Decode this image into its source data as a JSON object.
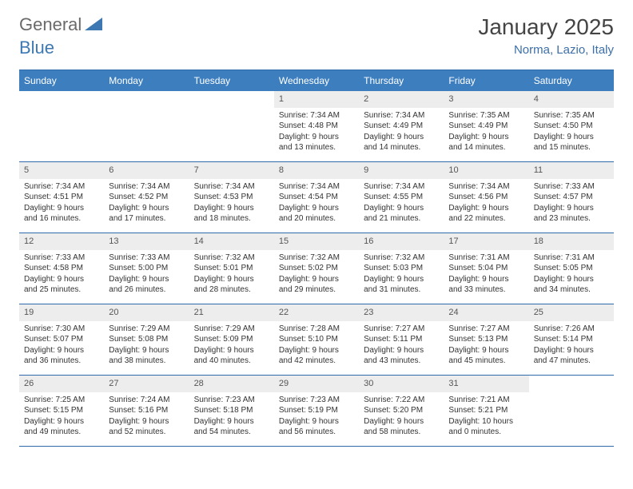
{
  "logo": {
    "text_general": "General",
    "text_blue": "Blue"
  },
  "header": {
    "month_title": "January 2025",
    "location": "Norma, Lazio, Italy"
  },
  "colors": {
    "header_bg": "#3d7ebf",
    "header_text": "#ffffff",
    "border": "#2f6aaa",
    "daynum_bg": "#ededed",
    "body_text": "#333333",
    "location_text": "#3c6fa8",
    "logo_gray": "#6a6a6a",
    "logo_blue": "#3d78b3"
  },
  "weekdays": [
    "Sunday",
    "Monday",
    "Tuesday",
    "Wednesday",
    "Thursday",
    "Friday",
    "Saturday"
  ],
  "weeks": [
    [
      {
        "n": "",
        "sr": "",
        "ss": "",
        "dl": "",
        "empty": true
      },
      {
        "n": "",
        "sr": "",
        "ss": "",
        "dl": "",
        "empty": true
      },
      {
        "n": "",
        "sr": "",
        "ss": "",
        "dl": "",
        "empty": true
      },
      {
        "n": "1",
        "sr": "Sunrise: 7:34 AM",
        "ss": "Sunset: 4:48 PM",
        "dl": "Daylight: 9 hours and 13 minutes."
      },
      {
        "n": "2",
        "sr": "Sunrise: 7:34 AM",
        "ss": "Sunset: 4:49 PM",
        "dl": "Daylight: 9 hours and 14 minutes."
      },
      {
        "n": "3",
        "sr": "Sunrise: 7:35 AM",
        "ss": "Sunset: 4:49 PM",
        "dl": "Daylight: 9 hours and 14 minutes."
      },
      {
        "n": "4",
        "sr": "Sunrise: 7:35 AM",
        "ss": "Sunset: 4:50 PM",
        "dl": "Daylight: 9 hours and 15 minutes."
      }
    ],
    [
      {
        "n": "5",
        "sr": "Sunrise: 7:34 AM",
        "ss": "Sunset: 4:51 PM",
        "dl": "Daylight: 9 hours and 16 minutes."
      },
      {
        "n": "6",
        "sr": "Sunrise: 7:34 AM",
        "ss": "Sunset: 4:52 PM",
        "dl": "Daylight: 9 hours and 17 minutes."
      },
      {
        "n": "7",
        "sr": "Sunrise: 7:34 AM",
        "ss": "Sunset: 4:53 PM",
        "dl": "Daylight: 9 hours and 18 minutes."
      },
      {
        "n": "8",
        "sr": "Sunrise: 7:34 AM",
        "ss": "Sunset: 4:54 PM",
        "dl": "Daylight: 9 hours and 20 minutes."
      },
      {
        "n": "9",
        "sr": "Sunrise: 7:34 AM",
        "ss": "Sunset: 4:55 PM",
        "dl": "Daylight: 9 hours and 21 minutes."
      },
      {
        "n": "10",
        "sr": "Sunrise: 7:34 AM",
        "ss": "Sunset: 4:56 PM",
        "dl": "Daylight: 9 hours and 22 minutes."
      },
      {
        "n": "11",
        "sr": "Sunrise: 7:33 AM",
        "ss": "Sunset: 4:57 PM",
        "dl": "Daylight: 9 hours and 23 minutes."
      }
    ],
    [
      {
        "n": "12",
        "sr": "Sunrise: 7:33 AM",
        "ss": "Sunset: 4:58 PM",
        "dl": "Daylight: 9 hours and 25 minutes."
      },
      {
        "n": "13",
        "sr": "Sunrise: 7:33 AM",
        "ss": "Sunset: 5:00 PM",
        "dl": "Daylight: 9 hours and 26 minutes."
      },
      {
        "n": "14",
        "sr": "Sunrise: 7:32 AM",
        "ss": "Sunset: 5:01 PM",
        "dl": "Daylight: 9 hours and 28 minutes."
      },
      {
        "n": "15",
        "sr": "Sunrise: 7:32 AM",
        "ss": "Sunset: 5:02 PM",
        "dl": "Daylight: 9 hours and 29 minutes."
      },
      {
        "n": "16",
        "sr": "Sunrise: 7:32 AM",
        "ss": "Sunset: 5:03 PM",
        "dl": "Daylight: 9 hours and 31 minutes."
      },
      {
        "n": "17",
        "sr": "Sunrise: 7:31 AM",
        "ss": "Sunset: 5:04 PM",
        "dl": "Daylight: 9 hours and 33 minutes."
      },
      {
        "n": "18",
        "sr": "Sunrise: 7:31 AM",
        "ss": "Sunset: 5:05 PM",
        "dl": "Daylight: 9 hours and 34 minutes."
      }
    ],
    [
      {
        "n": "19",
        "sr": "Sunrise: 7:30 AM",
        "ss": "Sunset: 5:07 PM",
        "dl": "Daylight: 9 hours and 36 minutes."
      },
      {
        "n": "20",
        "sr": "Sunrise: 7:29 AM",
        "ss": "Sunset: 5:08 PM",
        "dl": "Daylight: 9 hours and 38 minutes."
      },
      {
        "n": "21",
        "sr": "Sunrise: 7:29 AM",
        "ss": "Sunset: 5:09 PM",
        "dl": "Daylight: 9 hours and 40 minutes."
      },
      {
        "n": "22",
        "sr": "Sunrise: 7:28 AM",
        "ss": "Sunset: 5:10 PM",
        "dl": "Daylight: 9 hours and 42 minutes."
      },
      {
        "n": "23",
        "sr": "Sunrise: 7:27 AM",
        "ss": "Sunset: 5:11 PM",
        "dl": "Daylight: 9 hours and 43 minutes."
      },
      {
        "n": "24",
        "sr": "Sunrise: 7:27 AM",
        "ss": "Sunset: 5:13 PM",
        "dl": "Daylight: 9 hours and 45 minutes."
      },
      {
        "n": "25",
        "sr": "Sunrise: 7:26 AM",
        "ss": "Sunset: 5:14 PM",
        "dl": "Daylight: 9 hours and 47 minutes."
      }
    ],
    [
      {
        "n": "26",
        "sr": "Sunrise: 7:25 AM",
        "ss": "Sunset: 5:15 PM",
        "dl": "Daylight: 9 hours and 49 minutes."
      },
      {
        "n": "27",
        "sr": "Sunrise: 7:24 AM",
        "ss": "Sunset: 5:16 PM",
        "dl": "Daylight: 9 hours and 52 minutes."
      },
      {
        "n": "28",
        "sr": "Sunrise: 7:23 AM",
        "ss": "Sunset: 5:18 PM",
        "dl": "Daylight: 9 hours and 54 minutes."
      },
      {
        "n": "29",
        "sr": "Sunrise: 7:23 AM",
        "ss": "Sunset: 5:19 PM",
        "dl": "Daylight: 9 hours and 56 minutes."
      },
      {
        "n": "30",
        "sr": "Sunrise: 7:22 AM",
        "ss": "Sunset: 5:20 PM",
        "dl": "Daylight: 9 hours and 58 minutes."
      },
      {
        "n": "31",
        "sr": "Sunrise: 7:21 AM",
        "ss": "Sunset: 5:21 PM",
        "dl": "Daylight: 10 hours and 0 minutes."
      },
      {
        "n": "",
        "sr": "",
        "ss": "",
        "dl": "",
        "empty": true
      }
    ]
  ]
}
